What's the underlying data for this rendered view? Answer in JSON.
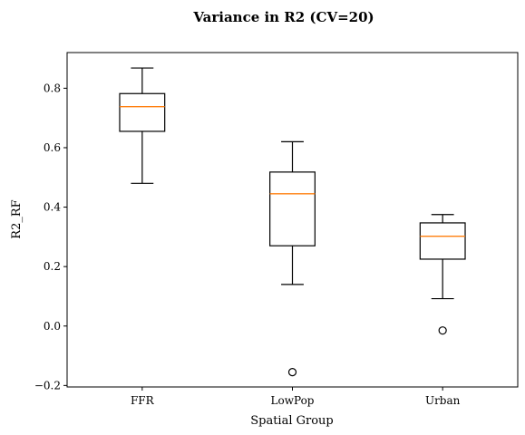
{
  "chart_data": {
    "type": "box",
    "title": "Variance in R2 (CV=20)",
    "xlabel": "Spatial Group",
    "ylabel": "R2_RF",
    "categories": [
      "FFR",
      "LowPop",
      "Urban"
    ],
    "ylim": [
      -0.205,
      0.92
    ],
    "yticks": [
      -0.2,
      0.0,
      0.2,
      0.4,
      0.6,
      0.8
    ],
    "ytick_labels": [
      "−0.2",
      "0.0",
      "0.2",
      "0.4",
      "0.6",
      "0.8"
    ],
    "grid": false,
    "boxes": [
      {
        "category": "FFR",
        "whisker_low": 0.48,
        "q1": 0.655,
        "median": 0.738,
        "q3": 0.782,
        "whisker_high": 0.868,
        "outliers": []
      },
      {
        "category": "LowPop",
        "whisker_low": 0.14,
        "q1": 0.27,
        "median": 0.445,
        "q3": 0.518,
        "whisker_high": 0.62,
        "outliers": [
          -0.155
        ]
      },
      {
        "category": "Urban",
        "whisker_low": 0.092,
        "q1": 0.225,
        "median": 0.302,
        "q3": 0.347,
        "whisker_high": 0.375,
        "outliers": [
          -0.015
        ]
      }
    ],
    "colors": {
      "box": "#000000",
      "median": "#ff7f0e",
      "outlier": "#000000"
    }
  }
}
